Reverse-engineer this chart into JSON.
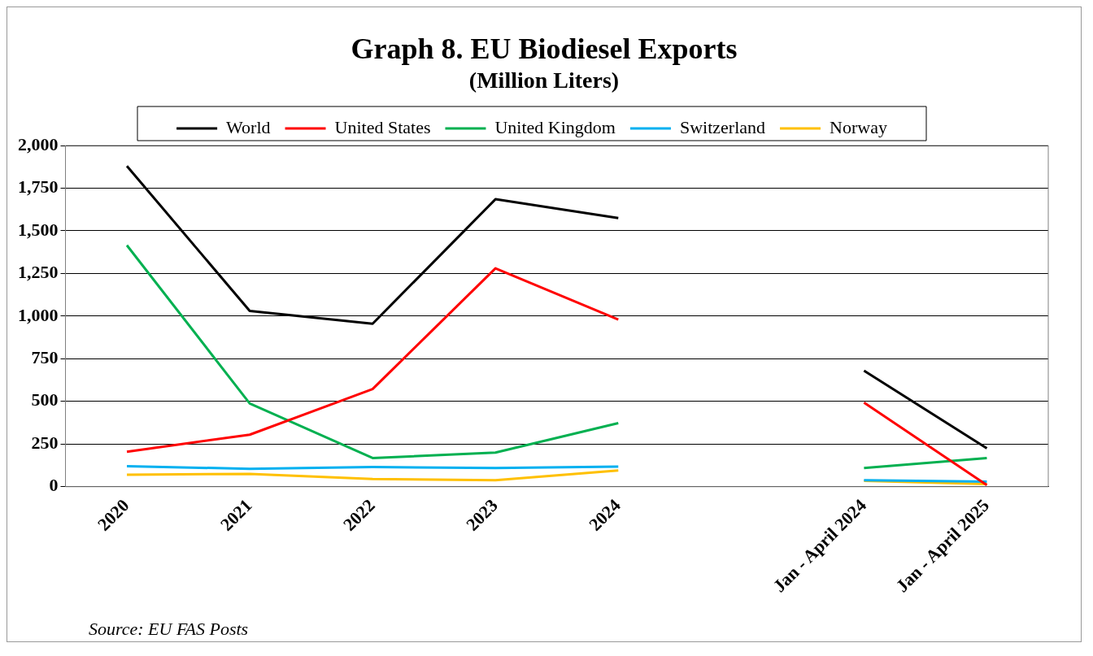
{
  "chart_data": {
    "type": "line",
    "title": "Graph 8.  EU Biodiesel Exports",
    "subtitle": "(Million Liters)",
    "categories": [
      "2020",
      "2021",
      "2022",
      "2023",
      "2024",
      null,
      "Jan - April 2024",
      "Jan - April 2025"
    ],
    "series": [
      {
        "name": "World",
        "color": "#000000",
        "values": [
          1880,
          1030,
          955,
          1685,
          1575,
          null,
          680,
          225
        ]
      },
      {
        "name": "United States",
        "color": "#ff0000",
        "values": [
          205,
          305,
          572,
          1280,
          980,
          null,
          493,
          10
        ]
      },
      {
        "name": "United Kingdom",
        "color": "#00b050",
        "values": [
          1415,
          488,
          168,
          200,
          373,
          null,
          110,
          168
        ]
      },
      {
        "name": "Switzerland",
        "color": "#00b0f0",
        "values": [
          120,
          105,
          115,
          110,
          118,
          null,
          38,
          30
        ]
      },
      {
        "name": "Norway",
        "color": "#ffc000",
        "values": [
          70,
          75,
          45,
          38,
          95,
          null,
          35,
          15
        ]
      }
    ],
    "ylim": [
      0,
      2000
    ],
    "yticks": [
      0,
      {
        "value": 250,
        "label": "250"
      },
      {
        "value": 500,
        "label": "500"
      },
      {
        "value": 750,
        "label": "750"
      },
      {
        "value": 1000,
        "label": "1,000"
      },
      {
        "value": 1250,
        "label": "1,250"
      },
      {
        "value": 1500,
        "label": "1,500"
      },
      {
        "value": 1750,
        "label": "1,750"
      },
      {
        "value": 2000,
        "label": "2,000"
      }
    ],
    "grid": "y",
    "legend": "top",
    "marker": "none",
    "line_style": "solid",
    "annotations": [
      "Source: EU FAS Posts"
    ]
  }
}
